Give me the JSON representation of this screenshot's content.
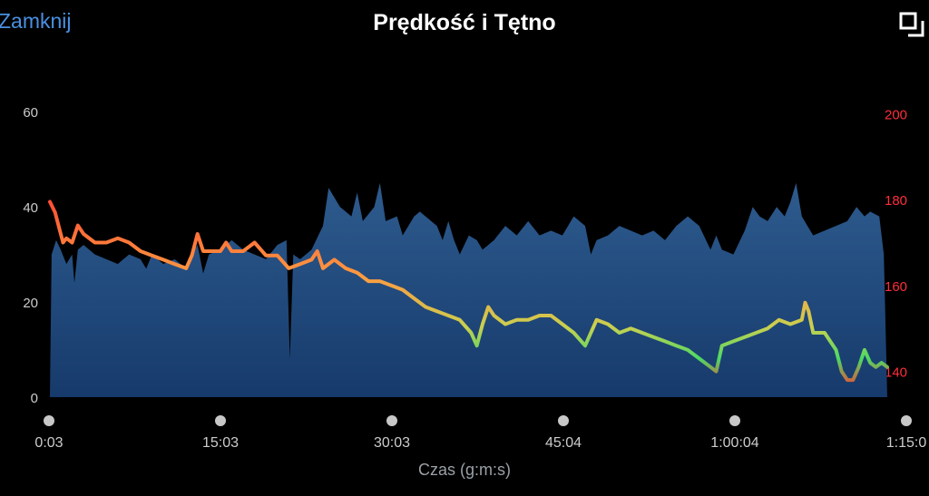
{
  "header": {
    "close_label": "Zamknij",
    "title": "Prędkość i Tętno",
    "expand_icon": "expand-icon"
  },
  "colors": {
    "background": "#000000",
    "link": "#4a90e2",
    "area_top": "#2e5b8e",
    "area_bottom": "#163a6b",
    "axis_text": "#cccccc",
    "hr_axis_text": "#ff2d3a",
    "hr_high": "#ff3b30",
    "hr_mid": "#ff9a40",
    "hr_low": "#4cd964",
    "scrubber_dot": "#c8c8c8"
  },
  "chart_data": {
    "type": "area",
    "xlabel": "Czas (g:m:s)",
    "x_tick_labels": [
      "0:03",
      "15:03",
      "30:03",
      "45:04",
      "1:00:04",
      "1:15:0"
    ],
    "xlim_minutes": [
      0.05,
      73.5
    ],
    "left_axis": {
      "ylim": [
        0,
        65
      ],
      "ticks": [
        "0",
        "20",
        "40",
        "60"
      ],
      "tick_values": [
        0,
        20,
        40,
        60
      ]
    },
    "right_axis": {
      "ylim": [
        134,
        206
      ],
      "ticks": [
        "140",
        "160",
        "180",
        "200"
      ],
      "tick_values": [
        140,
        160,
        180,
        200
      ]
    },
    "series": [
      {
        "axis": "left",
        "type": "area",
        "points": [
          [
            0.05,
            0
          ],
          [
            0.2,
            30
          ],
          [
            0.6,
            33
          ],
          [
            1.0,
            31
          ],
          [
            1.5,
            28
          ],
          [
            2.0,
            30
          ],
          [
            2.2,
            24
          ],
          [
            2.5,
            31
          ],
          [
            3.0,
            32
          ],
          [
            4.0,
            30
          ],
          [
            5.0,
            29
          ],
          [
            6.0,
            28
          ],
          [
            7.0,
            30
          ],
          [
            8.0,
            29
          ],
          [
            8.5,
            27
          ],
          [
            9.0,
            30
          ],
          [
            10.0,
            28
          ],
          [
            11.0,
            29
          ],
          [
            12.0,
            27
          ],
          [
            12.5,
            30
          ],
          [
            13.0,
            32
          ],
          [
            13.5,
            26
          ],
          [
            14.0,
            30
          ],
          [
            15.0,
            31
          ],
          [
            16.0,
            33
          ],
          [
            17.0,
            31
          ],
          [
            18.0,
            30
          ],
          [
            19.0,
            29
          ],
          [
            20.0,
            32
          ],
          [
            20.8,
            33
          ],
          [
            21.1,
            8
          ],
          [
            21.4,
            30
          ],
          [
            22.0,
            29
          ],
          [
            23.0,
            31
          ],
          [
            24.0,
            36
          ],
          [
            24.5,
            44
          ],
          [
            25.5,
            40
          ],
          [
            26.5,
            38
          ],
          [
            27.0,
            43
          ],
          [
            27.5,
            37
          ],
          [
            28.5,
            40
          ],
          [
            29.0,
            45
          ],
          [
            29.5,
            37
          ],
          [
            30.5,
            38
          ],
          [
            31.0,
            34
          ],
          [
            32.0,
            38
          ],
          [
            32.5,
            39
          ],
          [
            33.5,
            37
          ],
          [
            34.0,
            36
          ],
          [
            34.5,
            33
          ],
          [
            35.0,
            37
          ],
          [
            35.5,
            33
          ],
          [
            36.0,
            30
          ],
          [
            36.8,
            34
          ],
          [
            37.5,
            33
          ],
          [
            38.0,
            31
          ],
          [
            39.0,
            33
          ],
          [
            40.0,
            36
          ],
          [
            41.0,
            34
          ],
          [
            42.0,
            37
          ],
          [
            43.0,
            34
          ],
          [
            44.0,
            35
          ],
          [
            45.0,
            34
          ],
          [
            46.0,
            38
          ],
          [
            47.0,
            36
          ],
          [
            47.5,
            30
          ],
          [
            48.0,
            33
          ],
          [
            49.0,
            34
          ],
          [
            50.0,
            36
          ],
          [
            51.0,
            35
          ],
          [
            52.0,
            34
          ],
          [
            53.0,
            35
          ],
          [
            54.0,
            33
          ],
          [
            55.0,
            36
          ],
          [
            56.0,
            38
          ],
          [
            57.0,
            36
          ],
          [
            58.0,
            31
          ],
          [
            58.5,
            34
          ],
          [
            59.0,
            31
          ],
          [
            60.0,
            30
          ],
          [
            61.0,
            35
          ],
          [
            61.7,
            40
          ],
          [
            62.3,
            38
          ],
          [
            63.0,
            37
          ],
          [
            63.8,
            40
          ],
          [
            64.5,
            38
          ],
          [
            65.0,
            41
          ],
          [
            65.5,
            45
          ],
          [
            66.0,
            38
          ],
          [
            66.5,
            36
          ],
          [
            67.0,
            34
          ],
          [
            68.0,
            35
          ],
          [
            69.0,
            36
          ],
          [
            70.0,
            37
          ],
          [
            70.8,
            40
          ],
          [
            71.5,
            38
          ],
          [
            72.0,
            39
          ],
          [
            72.8,
            38
          ],
          [
            73.2,
            30
          ],
          [
            73.5,
            0
          ]
        ]
      },
      {
        "axis": "right",
        "type": "line",
        "name": "HR",
        "points": [
          [
            0.05,
            179.5
          ],
          [
            0.5,
            177
          ],
          [
            0.9,
            173
          ],
          [
            1.2,
            170
          ],
          [
            1.5,
            171
          ],
          [
            2.0,
            170
          ],
          [
            2.5,
            174
          ],
          [
            3.0,
            172
          ],
          [
            4.0,
            170
          ],
          [
            5.0,
            170
          ],
          [
            6.0,
            171
          ],
          [
            7.0,
            170
          ],
          [
            8.0,
            168
          ],
          [
            9.0,
            167
          ],
          [
            10.0,
            166
          ],
          [
            11.0,
            165
          ],
          [
            12.0,
            164
          ],
          [
            12.5,
            167
          ],
          [
            13.0,
            172
          ],
          [
            13.5,
            168
          ],
          [
            14.0,
            168
          ],
          [
            15.0,
            168
          ],
          [
            15.5,
            170
          ],
          [
            16.0,
            168
          ],
          [
            17.0,
            168
          ],
          [
            18.0,
            170
          ],
          [
            19.0,
            167
          ],
          [
            20.0,
            167
          ],
          [
            21.0,
            164
          ],
          [
            22.0,
            165
          ],
          [
            23.0,
            166
          ],
          [
            23.5,
            168
          ],
          [
            24.0,
            164
          ],
          [
            25.0,
            166
          ],
          [
            26.0,
            164
          ],
          [
            27.0,
            163
          ],
          [
            28.0,
            161
          ],
          [
            29.0,
            161
          ],
          [
            30.0,
            160
          ],
          [
            31.0,
            159
          ],
          [
            32.0,
            157
          ],
          [
            33.0,
            155
          ],
          [
            34.0,
            154
          ],
          [
            35.0,
            153
          ],
          [
            36.0,
            152
          ],
          [
            37.0,
            149
          ],
          [
            37.5,
            146
          ],
          [
            38.0,
            151
          ],
          [
            38.5,
            155
          ],
          [
            39.0,
            153
          ],
          [
            40.0,
            151
          ],
          [
            41.0,
            152
          ],
          [
            42.0,
            152
          ],
          [
            43.0,
            153
          ],
          [
            44.0,
            153
          ],
          [
            45.0,
            151
          ],
          [
            46.0,
            149
          ],
          [
            47.0,
            146
          ],
          [
            48.0,
            152
          ],
          [
            49.0,
            151
          ],
          [
            50.0,
            149
          ],
          [
            51.0,
            150
          ],
          [
            52.0,
            149
          ],
          [
            53.0,
            148
          ],
          [
            54.0,
            147
          ],
          [
            55.0,
            146
          ],
          [
            56.0,
            145
          ],
          [
            57.0,
            143
          ],
          [
            58.0,
            141
          ],
          [
            58.5,
            140
          ],
          [
            59.0,
            146
          ],
          [
            60.0,
            147
          ],
          [
            61.0,
            148
          ],
          [
            62.0,
            149
          ],
          [
            63.0,
            150
          ],
          [
            64.0,
            152
          ],
          [
            65.0,
            151
          ],
          [
            66.0,
            152
          ],
          [
            66.3,
            156
          ],
          [
            66.6,
            154
          ],
          [
            67.0,
            149
          ],
          [
            68.0,
            149
          ],
          [
            69.0,
            145
          ],
          [
            69.5,
            140
          ],
          [
            70.0,
            138
          ],
          [
            70.5,
            138
          ],
          [
            71.0,
            141
          ],
          [
            71.5,
            145
          ],
          [
            72.0,
            142
          ],
          [
            72.5,
            141
          ],
          [
            73.0,
            142
          ],
          [
            73.5,
            141
          ]
        ]
      }
    ]
  }
}
